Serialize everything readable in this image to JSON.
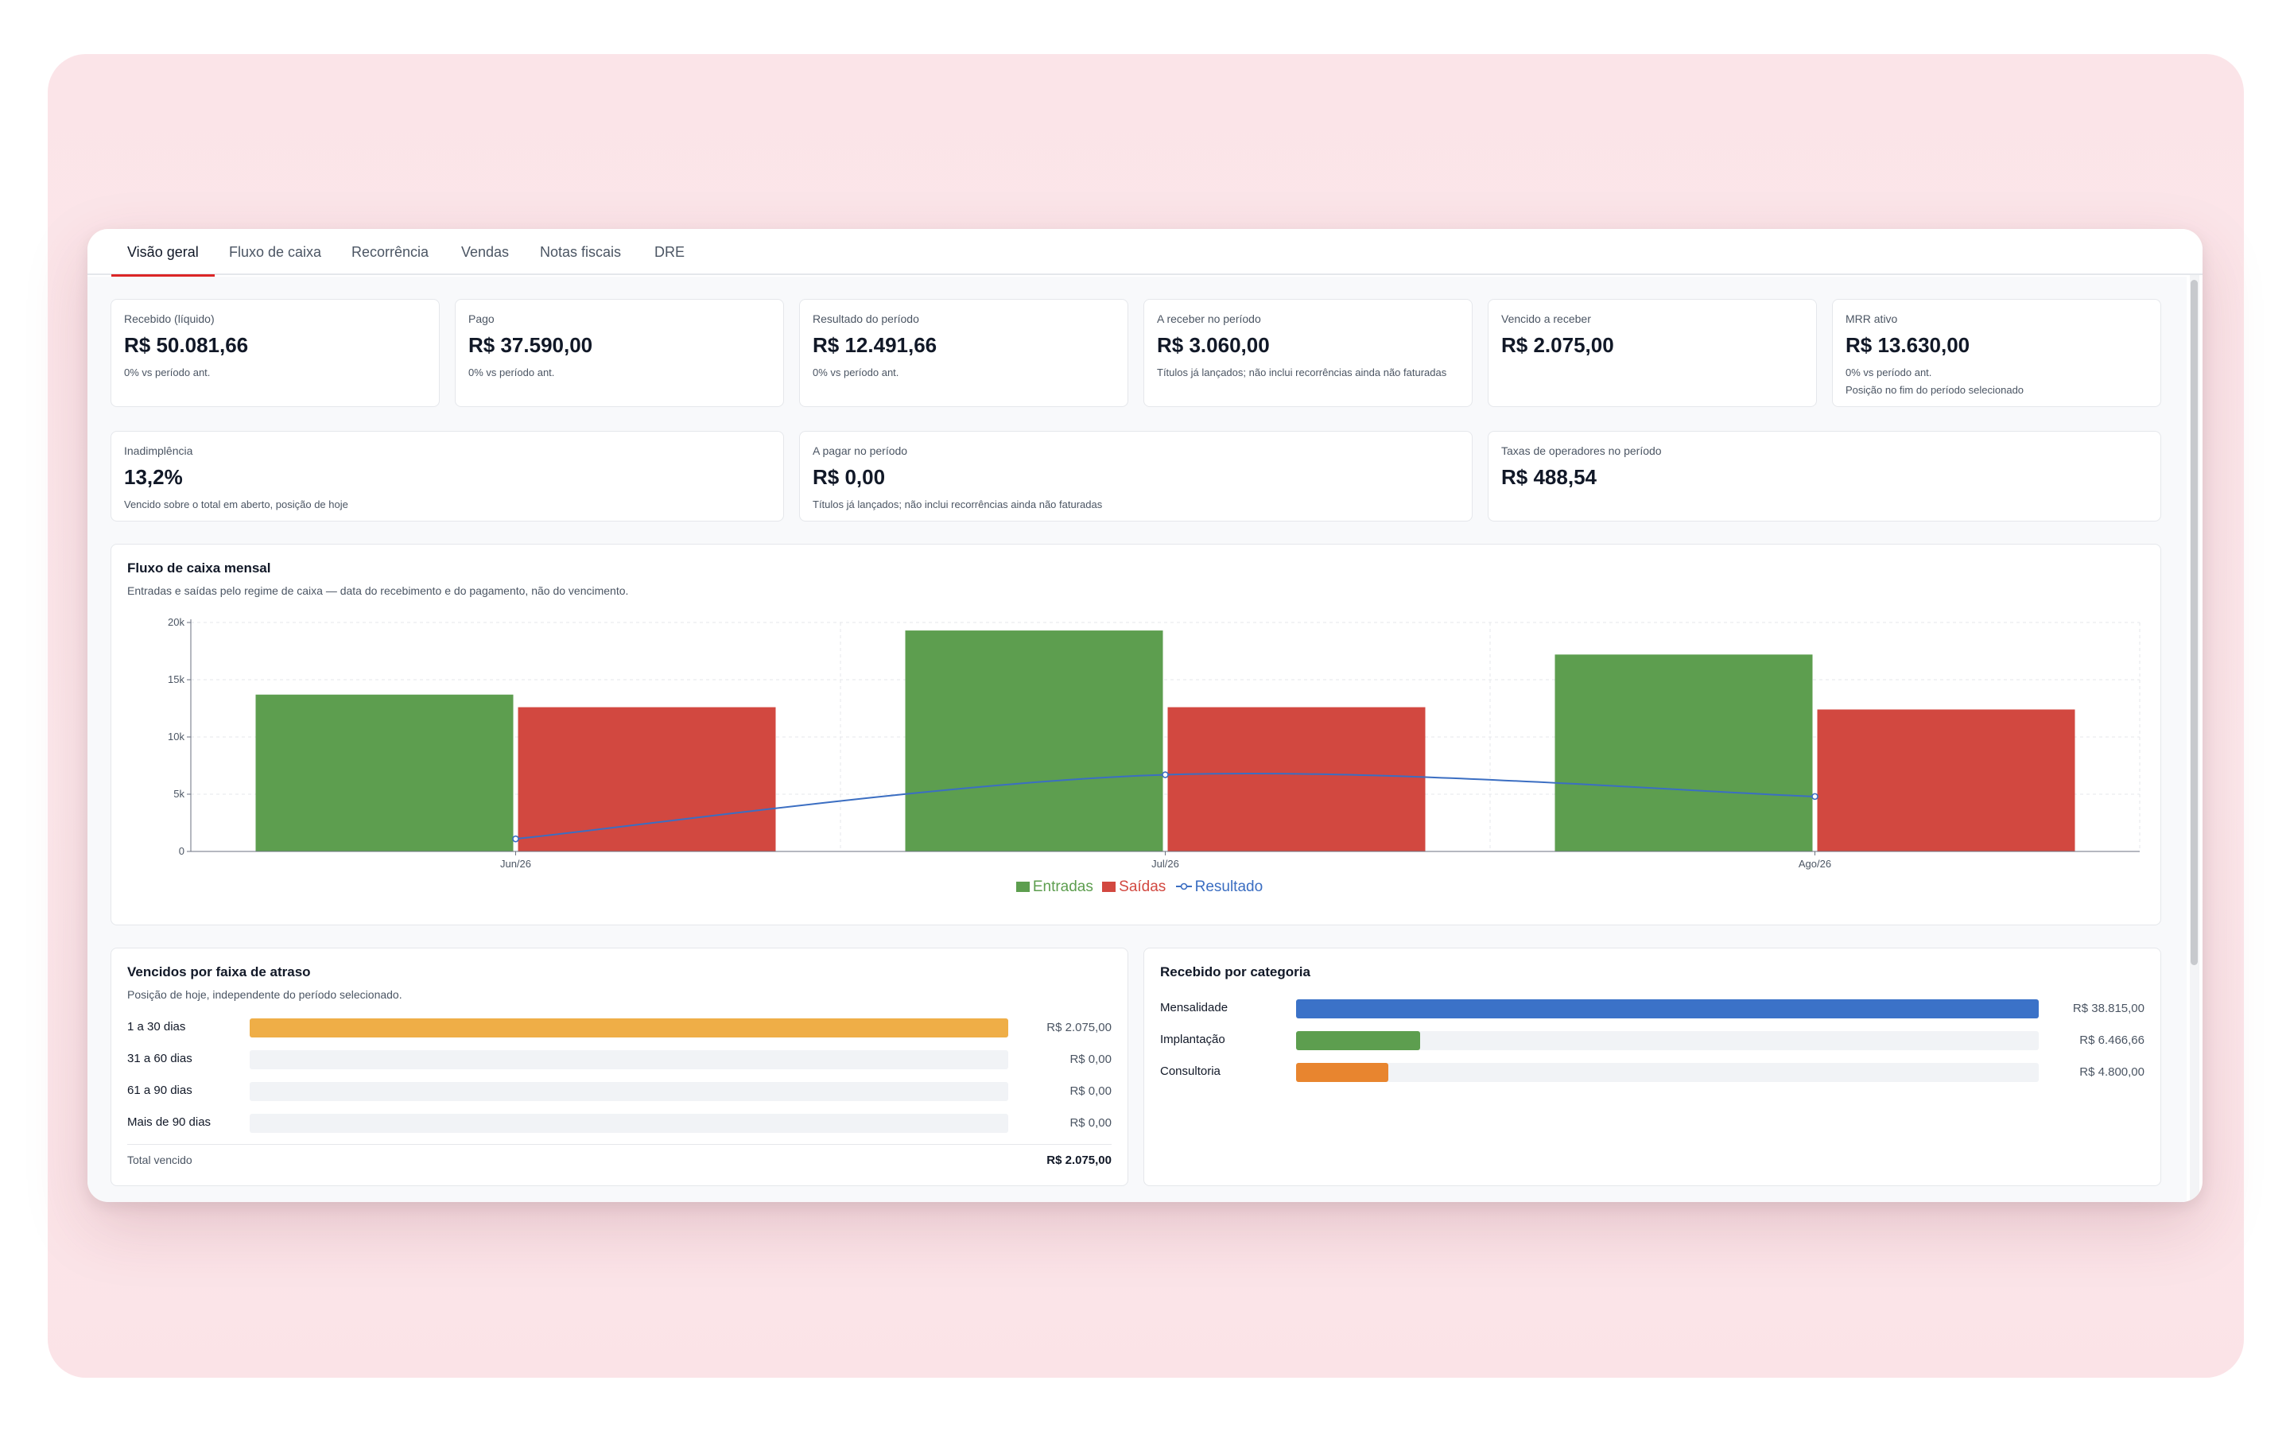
{
  "tabs": [
    {
      "label": "Visão geral",
      "active": true
    },
    {
      "label": "Fluxo de caixa",
      "active": false
    },
    {
      "label": "Recorrência",
      "active": false
    },
    {
      "label": "Vendas",
      "active": false
    },
    {
      "label": "Notas fiscais",
      "active": false
    },
    {
      "label": "DRE",
      "active": false
    }
  ],
  "kpis_row1": [
    {
      "label": "Recebido (líquido)",
      "value": "R$ 50.081,66",
      "sub": "0% vs período ant."
    },
    {
      "label": "Pago",
      "value": "R$ 37.590,00",
      "sub": "0% vs período ant."
    },
    {
      "label": "Resultado do período",
      "value": "R$ 12.491,66",
      "sub": "0% vs período ant."
    },
    {
      "label": "A receber no período",
      "value": "R$ 3.060,00",
      "sub": "Títulos já lançados; não inclui recorrências ainda não faturadas"
    },
    {
      "label": "Vencido a receber",
      "value": "R$ 2.075,00",
      "sub": ""
    },
    {
      "label": "MRR ativo",
      "value": "R$ 13.630,00",
      "sub": "0% vs período ant.",
      "sub2": "Posição no fim do período selecionado"
    }
  ],
  "kpis_row2": [
    {
      "label": "Inadimplência",
      "value": "13,2%",
      "sub": "Vencido sobre o total em aberto, posição de hoje"
    },
    {
      "label": "A pagar no período",
      "value": "R$ 0,00",
      "sub": "Títulos já lançados; não inclui recorrências ainda não faturadas"
    },
    {
      "label": "Taxas de operadores no período",
      "value": "R$ 488,54",
      "sub": ""
    }
  ],
  "cashflow": {
    "title": "Fluxo de caixa mensal",
    "subtitle": "Entradas e saídas pelo regime de caixa — data do recebimento e do pagamento, não do vencimento."
  },
  "chart_data": {
    "type": "bar",
    "categories": [
      "Jun/26",
      "Jul/26",
      "Ago/26"
    ],
    "series": [
      {
        "name": "Entradas",
        "type": "bar",
        "color": "#5d9e4f",
        "values": [
          13700,
          19300,
          17200
        ]
      },
      {
        "name": "Saídas",
        "type": "bar",
        "color": "#d24840",
        "values": [
          12600,
          12600,
          12400
        ]
      },
      {
        "name": "Resultado",
        "type": "line",
        "color": "#3b6ec2",
        "values": [
          1100,
          6700,
          4800
        ]
      }
    ],
    "ylim": [
      0,
      20000
    ],
    "yticks": [
      0,
      5000,
      10000,
      15000,
      20000
    ],
    "ytick_labels": [
      "0",
      "5k",
      "10k",
      "15k",
      "20k"
    ],
    "grid": true,
    "legend": "bottom-center"
  },
  "overdue": {
    "title": "Vencidos por faixa de atraso",
    "subtitle": "Posição de hoje, independente do período selecionado.",
    "color": "#efae47",
    "rows": [
      {
        "label": "1 a 30 dias",
        "amount": "R$ 2.075,00",
        "fraction": 1.0
      },
      {
        "label": "31 a 60 dias",
        "amount": "R$ 0,00",
        "fraction": 0
      },
      {
        "label": "61 a 90 dias",
        "amount": "R$ 0,00",
        "fraction": 0
      },
      {
        "label": "Mais de 90 dias",
        "amount": "R$ 0,00",
        "fraction": 0
      }
    ],
    "total_label": "Total vencido",
    "total_value": "R$ 2.075,00"
  },
  "by_category": {
    "title": "Recebido por categoria",
    "rows": [
      {
        "label": "Mensalidade",
        "amount": "R$ 38.815,00",
        "fraction": 1.0,
        "color": "#3b72c8"
      },
      {
        "label": "Implantação",
        "amount": "R$ 6.466,66",
        "fraction": 0.1666,
        "color": "#5d9e4f"
      },
      {
        "label": "Consultoria",
        "amount": "R$ 4.800,00",
        "fraction": 0.1237,
        "color": "#e8852f"
      }
    ]
  }
}
